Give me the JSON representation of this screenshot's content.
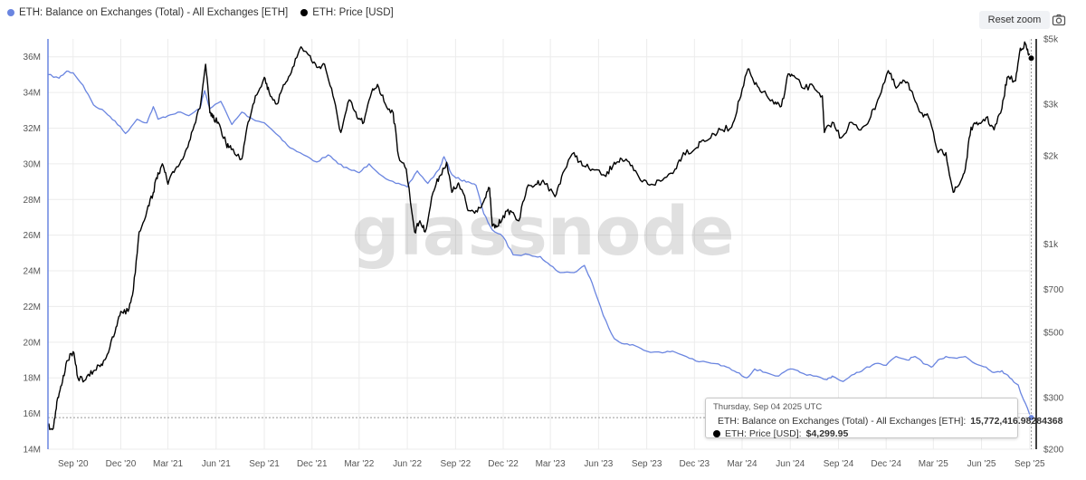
{
  "legend": {
    "balance_label": "ETH: Balance on Exchanges (Total) - All Exchanges [ETH]",
    "price_label": "ETH: Price [USD]"
  },
  "toolbar": {
    "reset_zoom_label": "Reset zoom",
    "camera_icon": "camera-icon"
  },
  "watermark": "glassnode",
  "colors": {
    "balance": "#6a85e0",
    "price": "#000000",
    "grid": "#ececec",
    "left_axis": "#6a85e0"
  },
  "tooltip": {
    "date": "Thursday, Sep 04 2025 UTC",
    "balance_label": "ETH: Balance on Exchanges (Total) - All Exchanges [ETH]:",
    "balance_value": "15,772,416.98284368",
    "price_label": "ETH: Price [USD]:",
    "price_value": "$4,299.95"
  },
  "chart_data": {
    "type": "line",
    "grid": true,
    "legend_position": "top-left",
    "x_ticks": [
      "Sep '20",
      "Dec '20",
      "Mar '21",
      "Jun '21",
      "Sep '21",
      "Dec '21",
      "Mar '22",
      "Jun '22",
      "Sep '22",
      "Dec '22",
      "Mar '23",
      "Jun '23",
      "Sep '23",
      "Dec '23",
      "Mar '24",
      "Jun '24",
      "Sep '24",
      "Dec '24",
      "Mar '25",
      "Jun '25",
      "Sep '25"
    ],
    "x_range": [
      "2020-07-15",
      "2025-09-10"
    ],
    "y_left": {
      "ticks": [
        "14M",
        "16M",
        "18M",
        "20M",
        "22M",
        "24M",
        "26M",
        "28M",
        "30M",
        "32M",
        "34M",
        "36M"
      ],
      "range": [
        14000000,
        37000000
      ]
    },
    "y_right": {
      "scale": "log",
      "ticks": [
        "$200",
        "$300",
        "$500",
        "$700",
        "$1k",
        "$2k",
        "$3k",
        "$5k"
      ],
      "range": [
        200,
        5000
      ]
    },
    "series": [
      {
        "name": "ETH: Balance on Exchanges (Total) - All Exchanges [ETH]",
        "axis": "left",
        "points": [
          [
            "2020-07-15",
            35000000
          ],
          [
            "2020-08-05",
            34800000
          ],
          [
            "2020-08-20",
            35200000
          ],
          [
            "2020-09-01",
            35100000
          ],
          [
            "2020-09-20",
            34400000
          ],
          [
            "2020-10-10",
            33300000
          ],
          [
            "2020-11-01",
            32900000
          ],
          [
            "2020-11-20",
            32400000
          ],
          [
            "2020-12-10",
            31700000
          ],
          [
            "2021-01-01",
            32500000
          ],
          [
            "2021-01-20",
            32300000
          ],
          [
            "2021-02-01",
            33200000
          ],
          [
            "2021-02-10",
            32500000
          ],
          [
            "2021-03-01",
            32700000
          ],
          [
            "2021-03-20",
            32900000
          ],
          [
            "2021-04-10",
            32700000
          ],
          [
            "2021-05-01",
            33100000
          ],
          [
            "2021-05-10",
            34100000
          ],
          [
            "2021-05-20",
            33100000
          ],
          [
            "2021-06-10",
            33500000
          ],
          [
            "2021-07-01",
            32200000
          ],
          [
            "2021-07-20",
            32900000
          ],
          [
            "2021-08-10",
            32500000
          ],
          [
            "2021-09-01",
            32300000
          ],
          [
            "2021-10-01",
            31500000
          ],
          [
            "2021-10-20",
            30900000
          ],
          [
            "2021-11-15",
            30500000
          ],
          [
            "2021-12-10",
            30100000
          ],
          [
            "2022-01-01",
            30500000
          ],
          [
            "2022-01-20",
            30000000
          ],
          [
            "2022-02-10",
            29700000
          ],
          [
            "2022-03-01",
            29500000
          ],
          [
            "2022-03-20",
            30000000
          ],
          [
            "2022-04-15",
            29300000
          ],
          [
            "2022-05-10",
            28900000
          ],
          [
            "2022-06-01",
            28700000
          ],
          [
            "2022-06-20",
            29600000
          ],
          [
            "2022-07-10",
            28900000
          ],
          [
            "2022-08-01",
            29700000
          ],
          [
            "2022-08-10",
            30400000
          ],
          [
            "2022-08-25",
            29400000
          ],
          [
            "2022-09-10",
            29100000
          ],
          [
            "2022-09-25",
            29000000
          ],
          [
            "2022-10-10",
            28800000
          ],
          [
            "2022-10-25",
            27200000
          ],
          [
            "2022-11-10",
            26300000
          ],
          [
            "2022-12-01",
            25900000
          ],
          [
            "2022-12-20",
            24900000
          ],
          [
            "2023-01-20",
            24900000
          ],
          [
            "2023-02-10",
            24800000
          ],
          [
            "2023-03-01",
            24300000
          ],
          [
            "2023-03-20",
            23900000
          ],
          [
            "2023-04-15",
            23900000
          ],
          [
            "2023-05-05",
            24300000
          ],
          [
            "2023-05-20",
            23300000
          ],
          [
            "2023-06-10",
            21500000
          ],
          [
            "2023-07-01",
            20200000
          ],
          [
            "2023-07-20",
            19900000
          ],
          [
            "2023-08-10",
            19800000
          ],
          [
            "2023-09-01",
            19500000
          ],
          [
            "2023-10-01",
            19400000
          ],
          [
            "2023-10-20",
            19500000
          ],
          [
            "2023-11-15",
            19200000
          ],
          [
            "2023-12-10",
            18900000
          ],
          [
            "2024-01-10",
            18800000
          ],
          [
            "2024-02-01",
            18600000
          ],
          [
            "2024-02-20",
            18300000
          ],
          [
            "2024-03-10",
            18000000
          ],
          [
            "2024-03-25",
            18500000
          ],
          [
            "2024-04-15",
            18300000
          ],
          [
            "2024-05-10",
            18100000
          ],
          [
            "2024-06-01",
            18500000
          ],
          [
            "2024-06-20",
            18300000
          ],
          [
            "2024-07-15",
            18100000
          ],
          [
            "2024-08-10",
            17900000
          ],
          [
            "2024-08-20",
            18100000
          ],
          [
            "2024-09-10",
            17800000
          ],
          [
            "2024-10-01",
            18200000
          ],
          [
            "2024-10-20",
            18500000
          ],
          [
            "2024-11-10",
            18800000
          ],
          [
            "2024-12-01",
            18700000
          ],
          [
            "2024-12-20",
            19200000
          ],
          [
            "2025-01-10",
            19000000
          ],
          [
            "2025-01-25",
            19200000
          ],
          [
            "2025-02-10",
            18800000
          ],
          [
            "2025-02-25",
            18600000
          ],
          [
            "2025-03-10",
            19000000
          ],
          [
            "2025-03-25",
            19200000
          ],
          [
            "2025-04-15",
            19100000
          ],
          [
            "2025-05-01",
            19200000
          ],
          [
            "2025-05-20",
            18800000
          ],
          [
            "2025-06-10",
            18600000
          ],
          [
            "2025-06-25",
            18300000
          ],
          [
            "2025-07-10",
            18400000
          ],
          [
            "2025-07-25",
            18000000
          ],
          [
            "2025-08-10",
            17600000
          ],
          [
            "2025-08-20",
            16800000
          ],
          [
            "2025-09-04",
            15772417
          ]
        ]
      },
      {
        "name": "ETH: Price [USD]",
        "axis": "right",
        "points": [
          [
            "2020-07-15",
            240
          ],
          [
            "2020-07-25",
            235
          ],
          [
            "2020-08-01",
            290
          ],
          [
            "2020-08-10",
            330
          ],
          [
            "2020-08-20",
            400
          ],
          [
            "2020-09-01",
            430
          ],
          [
            "2020-09-10",
            350
          ],
          [
            "2020-09-25",
            345
          ],
          [
            "2020-10-10",
            370
          ],
          [
            "2020-10-25",
            390
          ],
          [
            "2020-11-05",
            420
          ],
          [
            "2020-11-20",
            500
          ],
          [
            "2020-12-01",
            590
          ],
          [
            "2020-12-15",
            590
          ],
          [
            "2020-12-25",
            700
          ],
          [
            "2021-01-05",
            1100
          ],
          [
            "2021-01-20",
            1300
          ],
          [
            "2021-02-01",
            1500
          ],
          [
            "2021-02-10",
            1750
          ],
          [
            "2021-02-20",
            1850
          ],
          [
            "2021-03-01",
            1600
          ],
          [
            "2021-03-15",
            1800
          ],
          [
            "2021-04-01",
            2000
          ],
          [
            "2021-04-15",
            2400
          ],
          [
            "2021-05-01",
            2900
          ],
          [
            "2021-05-12",
            4100
          ],
          [
            "2021-05-20",
            2800
          ],
          [
            "2021-05-25",
            2700
          ],
          [
            "2021-06-05",
            2600
          ],
          [
            "2021-06-20",
            2200
          ],
          [
            "2021-06-30",
            2100
          ],
          [
            "2021-07-20",
            1950
          ],
          [
            "2021-08-01",
            2600
          ],
          [
            "2021-08-15",
            3200
          ],
          [
            "2021-09-01",
            3700
          ],
          [
            "2021-09-10",
            3300
          ],
          [
            "2021-09-25",
            3000
          ],
          [
            "2021-10-10",
            3500
          ],
          [
            "2021-10-25",
            4000
          ],
          [
            "2021-11-10",
            4700
          ],
          [
            "2021-11-25",
            4400
          ],
          [
            "2021-12-10",
            4000
          ],
          [
            "2021-12-25",
            4100
          ],
          [
            "2022-01-10",
            3200
          ],
          [
            "2022-01-25",
            2400
          ],
          [
            "2022-02-10",
            3100
          ],
          [
            "2022-02-25",
            2700
          ],
          [
            "2022-03-10",
            2600
          ],
          [
            "2022-03-25",
            3300
          ],
          [
            "2022-04-05",
            3500
          ],
          [
            "2022-04-20",
            3000
          ],
          [
            "2022-05-05",
            2800
          ],
          [
            "2022-05-15",
            2000
          ],
          [
            "2022-05-30",
            1800
          ],
          [
            "2022-06-15",
            1100
          ],
          [
            "2022-06-25",
            1200
          ],
          [
            "2022-07-05",
            1100
          ],
          [
            "2022-07-20",
            1500
          ],
          [
            "2022-08-01",
            1700
          ],
          [
            "2022-08-15",
            1900
          ],
          [
            "2022-08-25",
            1500
          ],
          [
            "2022-09-05",
            1600
          ],
          [
            "2022-09-15",
            1500
          ],
          [
            "2022-09-25",
            1300
          ],
          [
            "2022-10-10",
            1300
          ],
          [
            "2022-10-25",
            1400
          ],
          [
            "2022-11-05",
            1550
          ],
          [
            "2022-11-10",
            1150
          ],
          [
            "2022-11-20",
            1150
          ],
          [
            "2022-12-01",
            1250
          ],
          [
            "2022-12-15",
            1300
          ],
          [
            "2022-12-31",
            1200
          ],
          [
            "2023-01-15",
            1550
          ],
          [
            "2023-02-01",
            1600
          ],
          [
            "2023-02-15",
            1650
          ],
          [
            "2023-03-10",
            1450
          ],
          [
            "2023-03-25",
            1750
          ],
          [
            "2023-04-15",
            2050
          ],
          [
            "2023-05-01",
            1850
          ],
          [
            "2023-05-20",
            1800
          ],
          [
            "2023-06-15",
            1700
          ],
          [
            "2023-07-01",
            1900
          ],
          [
            "2023-07-15",
            1950
          ],
          [
            "2023-08-01",
            1850
          ],
          [
            "2023-08-20",
            1650
          ],
          [
            "2023-09-10",
            1600
          ],
          [
            "2023-10-01",
            1650
          ],
          [
            "2023-10-25",
            1800
          ],
          [
            "2023-11-10",
            2050
          ],
          [
            "2023-12-01",
            2100
          ],
          [
            "2023-12-15",
            2250
          ],
          [
            "2024-01-01",
            2300
          ],
          [
            "2024-01-20",
            2450
          ],
          [
            "2024-02-10",
            2500
          ],
          [
            "2024-02-25",
            3100
          ],
          [
            "2024-03-12",
            3950
          ],
          [
            "2024-03-25",
            3500
          ],
          [
            "2024-04-10",
            3300
          ],
          [
            "2024-05-01",
            3000
          ],
          [
            "2024-05-15",
            2950
          ],
          [
            "2024-05-28",
            3800
          ],
          [
            "2024-06-10",
            3700
          ],
          [
            "2024-06-25",
            3400
          ],
          [
            "2024-07-15",
            3450
          ],
          [
            "2024-08-01",
            3200
          ],
          [
            "2024-08-05",
            2400
          ],
          [
            "2024-08-20",
            2600
          ],
          [
            "2024-09-06",
            2300
          ],
          [
            "2024-09-25",
            2600
          ],
          [
            "2024-10-10",
            2450
          ],
          [
            "2024-10-30",
            2650
          ],
          [
            "2024-11-15",
            3100
          ],
          [
            "2024-12-05",
            3900
          ],
          [
            "2024-12-20",
            3400
          ],
          [
            "2025-01-05",
            3600
          ],
          [
            "2025-01-20",
            3300
          ],
          [
            "2025-02-05",
            2800
          ],
          [
            "2025-02-20",
            2700
          ],
          [
            "2025-03-10",
            2050
          ],
          [
            "2025-03-25",
            2050
          ],
          [
            "2025-04-08",
            1500
          ],
          [
            "2025-04-20",
            1600
          ],
          [
            "2025-05-01",
            1800
          ],
          [
            "2025-05-12",
            2500
          ],
          [
            "2025-05-25",
            2550
          ],
          [
            "2025-06-10",
            2700
          ],
          [
            "2025-06-25",
            2450
          ],
          [
            "2025-07-10",
            2900
          ],
          [
            "2025-07-20",
            3700
          ],
          [
            "2025-08-05",
            3600
          ],
          [
            "2025-08-14",
            4650
          ],
          [
            "2025-08-24",
            4800
          ],
          [
            "2025-08-30",
            4400
          ],
          [
            "2025-09-04",
            4299.95
          ]
        ]
      }
    ]
  }
}
